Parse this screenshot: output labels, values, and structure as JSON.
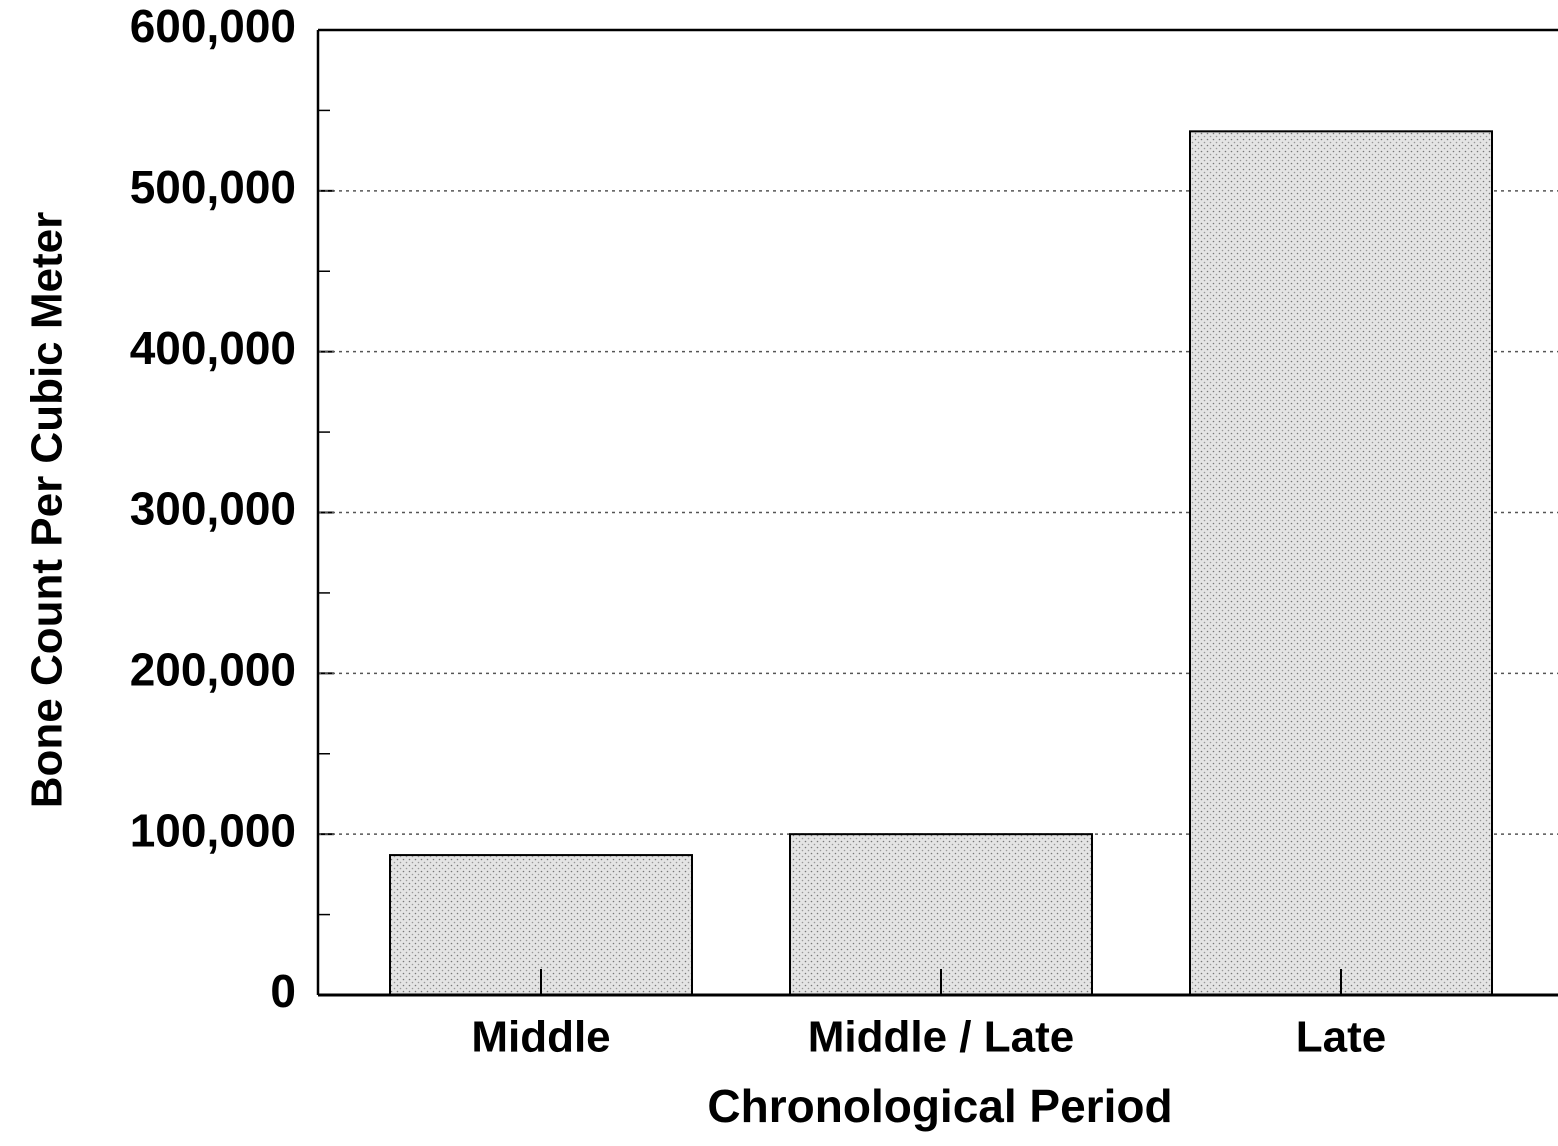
{
  "chart_data": {
    "type": "bar",
    "xlabel": "Chronological Period",
    "ylabel": "Bone Count Per Cubic Meter",
    "categories": [
      "Middle",
      "Middle / Late",
      "Late"
    ],
    "values": [
      87000,
      100000,
      537000
    ],
    "color": "#e4e4e4",
    "ylim": [
      0,
      600000
    ],
    "yticks": [
      0,
      {
        "value": 100000,
        "label": "100,000"
      },
      {
        "value": 200000,
        "label": "200,000"
      },
      {
        "value": 300000,
        "label": "300,000"
      },
      {
        "value": 400000,
        "label": "400,000"
      },
      {
        "value": 500000,
        "label": "500,000"
      },
      {
        "value": 600000,
        "label": "600,000"
      }
    ],
    "yminorticks": [
      50000,
      150000,
      250000,
      350000,
      450000,
      550000
    ],
    "grid": true
  }
}
